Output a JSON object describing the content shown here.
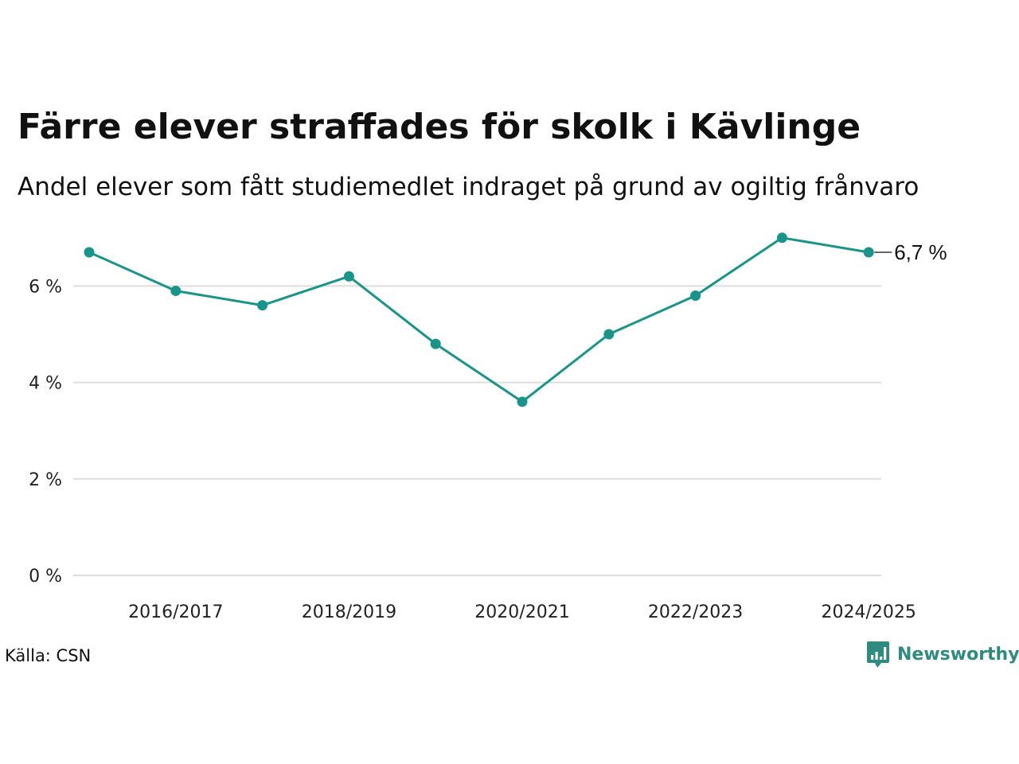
{
  "title": "Färre elever straffades för skolk i Kävlinge",
  "subtitle": "Andel elever som fått studiemedlet indraget på grund av ogiltig frånvaro",
  "source": "Källa: CSN",
  "brand": {
    "name": "Newsworthy",
    "icon": "newsworthy-logo-icon",
    "color": "#2e8b80"
  },
  "colors": {
    "line": "#18958a",
    "grid": "#dddddd",
    "text": "#111111"
  },
  "chart_data": {
    "type": "line",
    "title": "Färre elever straffades för skolk i Kävlinge",
    "subtitle": "Andel elever som fått studiemedlet indraget på grund av ogiltig frånvaro",
    "x": [
      "2015/2016",
      "2016/2017",
      "2017/2018",
      "2018/2019",
      "2019/2020",
      "2020/2021",
      "2021/2022",
      "2022/2023",
      "2023/2024",
      "2024/2025"
    ],
    "x_tick_labels": [
      "2016/2017",
      "2018/2019",
      "2020/2021",
      "2022/2023",
      "2024/2025"
    ],
    "series": [
      {
        "values": [
          6.7,
          5.9,
          5.6,
          6.2,
          4.8,
          3.6,
          5.0,
          5.8,
          7.0,
          6.7
        ],
        "color": "#18958a"
      }
    ],
    "y_ticks": [
      0,
      2,
      4,
      6
    ],
    "y_tick_labels": [
      "0 %",
      "2 %",
      "4 %",
      "6 %"
    ],
    "ylim": [
      0,
      7.2
    ],
    "grid": "horizontal",
    "end_label": "6,7 %",
    "xlabel": "",
    "ylabel": ""
  }
}
